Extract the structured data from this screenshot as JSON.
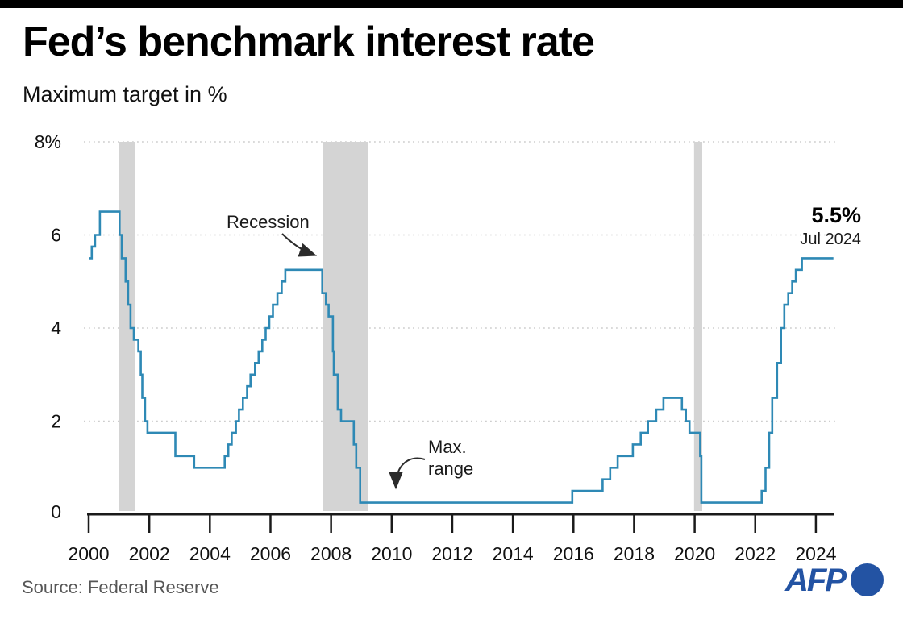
{
  "header": {
    "title": "Fed’s benchmark interest rate",
    "subtitle": "Maximum target in %"
  },
  "annotations": {
    "recession_label": "Recession",
    "max_range_line1": "Max.",
    "max_range_line2": "range",
    "latest_value": "5.5%",
    "latest_date": "Jul 2024"
  },
  "footer": {
    "source": "Source: Federal Reserve",
    "logo_text": "AFP"
  },
  "chart_data": {
    "type": "step-line",
    "title": "Fed's benchmark interest rate",
    "subtitle": "Maximum target in %",
    "unit": "%",
    "ylim": [
      0,
      8
    ],
    "xlim": [
      2000,
      2024.58
    ],
    "grid": {
      "horizontal": true,
      "style": "dotted"
    },
    "y_ticks": [
      {
        "value": 0,
        "label": "0"
      },
      {
        "value": 2,
        "label": "2"
      },
      {
        "value": 4,
        "label": "4"
      },
      {
        "value": 6,
        "label": "6"
      },
      {
        "value": 8,
        "label": "8%"
      }
    ],
    "x_ticks": [
      {
        "value": 2000,
        "label": "2000"
      },
      {
        "value": 2002,
        "label": "2002"
      },
      {
        "value": 2004,
        "label": "2004"
      },
      {
        "value": 2006,
        "label": "2006"
      },
      {
        "value": 2008,
        "label": "2008"
      },
      {
        "value": 2010,
        "label": "2010"
      },
      {
        "value": 2012,
        "label": "2012"
      },
      {
        "value": 2014,
        "label": "2014"
      },
      {
        "value": 2016,
        "label": "2016"
      },
      {
        "value": 2018,
        "label": "2018"
      },
      {
        "value": 2020,
        "label": "2020"
      },
      {
        "value": 2022,
        "label": "2022"
      },
      {
        "value": 2024,
        "label": "2024"
      }
    ],
    "series": [
      {
        "name": "Fed benchmark interest rate (maximum target, %)",
        "points": [
          [
            2000.0,
            5.5
          ],
          [
            2000.1,
            5.75
          ],
          [
            2000.21,
            6.0
          ],
          [
            2000.37,
            6.5
          ],
          [
            2001.02,
            6.0
          ],
          [
            2001.09,
            5.5
          ],
          [
            2001.22,
            5.0
          ],
          [
            2001.3,
            4.5
          ],
          [
            2001.38,
            4.0
          ],
          [
            2001.49,
            3.75
          ],
          [
            2001.64,
            3.5
          ],
          [
            2001.72,
            3.0
          ],
          [
            2001.77,
            2.5
          ],
          [
            2001.86,
            2.0
          ],
          [
            2001.94,
            1.75
          ],
          [
            2002.86,
            1.25
          ],
          [
            2003.48,
            1.0
          ],
          [
            2004.49,
            1.25
          ],
          [
            2004.61,
            1.5
          ],
          [
            2004.72,
            1.75
          ],
          [
            2004.86,
            2.0
          ],
          [
            2004.96,
            2.25
          ],
          [
            2005.09,
            2.5
          ],
          [
            2005.23,
            2.75
          ],
          [
            2005.34,
            3.0
          ],
          [
            2005.49,
            3.25
          ],
          [
            2005.61,
            3.5
          ],
          [
            2005.73,
            3.75
          ],
          [
            2005.84,
            4.0
          ],
          [
            2005.96,
            4.25
          ],
          [
            2006.08,
            4.5
          ],
          [
            2006.23,
            4.75
          ],
          [
            2006.37,
            5.0
          ],
          [
            2006.49,
            5.25
          ],
          [
            2007.71,
            4.75
          ],
          [
            2007.83,
            4.5
          ],
          [
            2007.92,
            4.25
          ],
          [
            2008.06,
            3.5
          ],
          [
            2008.09,
            3.0
          ],
          [
            2008.22,
            2.25
          ],
          [
            2008.33,
            2.0
          ],
          [
            2008.75,
            1.5
          ],
          [
            2008.83,
            1.0
          ],
          [
            2008.96,
            0.25
          ],
          [
            2015.96,
            0.5
          ],
          [
            2016.96,
            0.75
          ],
          [
            2017.21,
            1.0
          ],
          [
            2017.46,
            1.25
          ],
          [
            2017.96,
            1.5
          ],
          [
            2018.22,
            1.75
          ],
          [
            2018.46,
            2.0
          ],
          [
            2018.73,
            2.25
          ],
          [
            2018.97,
            2.5
          ],
          [
            2019.58,
            2.25
          ],
          [
            2019.71,
            2.0
          ],
          [
            2019.83,
            1.75
          ],
          [
            2020.18,
            1.25
          ],
          [
            2020.22,
            0.25
          ],
          [
            2022.21,
            0.5
          ],
          [
            2022.34,
            1.0
          ],
          [
            2022.46,
            1.75
          ],
          [
            2022.56,
            2.5
          ],
          [
            2022.72,
            3.25
          ],
          [
            2022.85,
            4.0
          ],
          [
            2022.96,
            4.5
          ],
          [
            2023.09,
            4.75
          ],
          [
            2023.22,
            5.0
          ],
          [
            2023.34,
            5.25
          ],
          [
            2023.54,
            5.5
          ]
        ]
      }
    ],
    "recessions": [
      [
        2001.0,
        2001.52
      ],
      [
        2007.72,
        2009.23
      ],
      [
        2019.98,
        2020.25
      ]
    ],
    "end_label": {
      "value": "5.5%",
      "date": "Jul 2024"
    },
    "colors": {
      "line": "#2e89b5",
      "recession_band": "#d4d4d4",
      "grid": "#cdcdcd",
      "axis": "#1a1a1a",
      "tick_label": "#111111"
    }
  }
}
